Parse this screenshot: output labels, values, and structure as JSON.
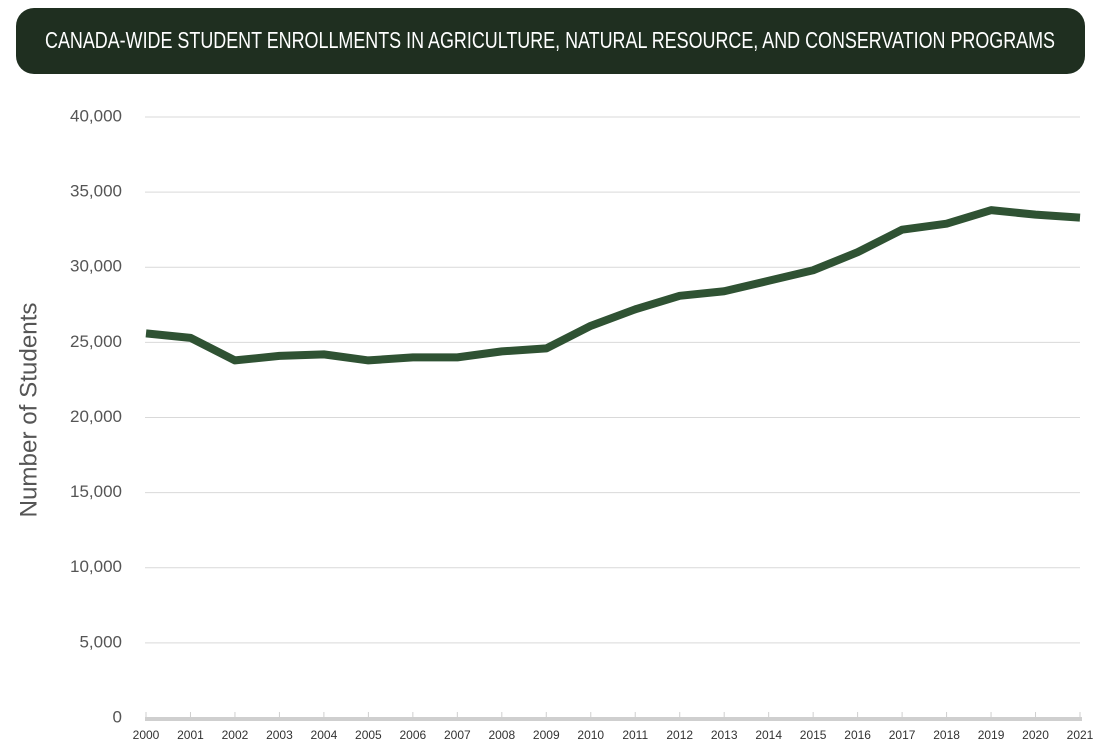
{
  "chart_data": {
    "type": "line",
    "title": "CANADA-WIDE STUDENT ENROLLMENTS IN AGRICULTURE, NATURAL RESOURCE, AND CONSERVATION PROGRAMS",
    "y_label": "Number of Students",
    "categories": [
      "2000",
      "2001",
      "2002",
      "2003",
      "2004",
      "2005",
      "2006",
      "2007",
      "2008",
      "2009",
      "2010",
      "2011",
      "2012",
      "2013",
      "2014",
      "2015",
      "2016",
      "2017",
      "2018",
      "2019",
      "2020",
      "2021"
    ],
    "series": [
      {
        "name": "Students",
        "color": "#2f5233",
        "values": [
          25600,
          25300,
          23800,
          24100,
          24200,
          23800,
          24000,
          24000,
          24400,
          24600,
          26100,
          27200,
          28100,
          28400,
          29100,
          29800,
          31000,
          32500,
          32900,
          33800,
          33500,
          33300
        ]
      }
    ],
    "ylim": [
      0,
      40000
    ],
    "yticks": [
      0,
      {
        "value": 5000,
        "label": "5,000"
      },
      {
        "value": 10000,
        "label": "10,000"
      },
      {
        "value": 15000,
        "label": "15,000"
      },
      {
        "value": 20000,
        "label": "20,000"
      },
      {
        "value": 25000,
        "label": "25,000"
      },
      {
        "value": 30000,
        "label": "30,000"
      },
      {
        "value": 35000,
        "label": "35,000"
      },
      {
        "value": 40000,
        "label": "40,000"
      }
    ],
    "grid": true
  }
}
